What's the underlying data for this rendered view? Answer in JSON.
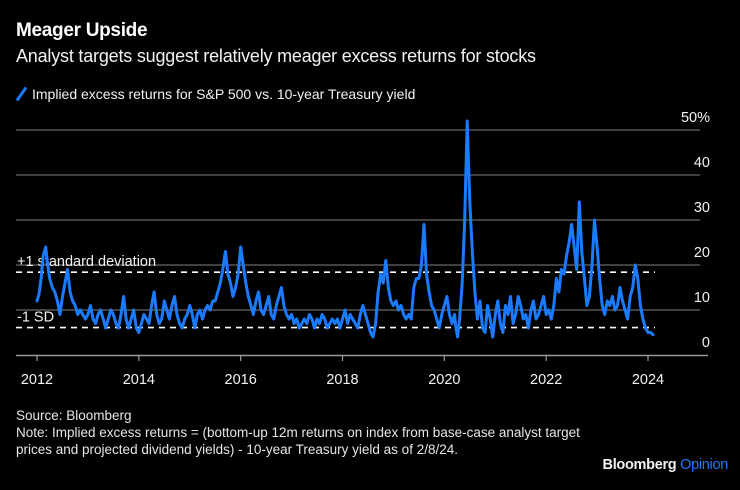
{
  "header": {
    "title": "Meager Upside",
    "subtitle": "Analyst targets suggest relatively meager excess returns for stocks"
  },
  "footer": {
    "source": "Source: Bloomberg",
    "note": "Note: Implied excess returns = (bottom-up 12m returns on index from base-case analyst target prices and projected dividend yields) - 10-year Treasury yield as of 2/8/24."
  },
  "brand": {
    "name": "Bloomberg",
    "section": "Opinion"
  },
  "colors": {
    "series": "#1a7bff",
    "grid": "#555555",
    "axis": "#9a9a9a",
    "reference": "#ffffff"
  },
  "chart_data": {
    "type": "line",
    "title": "Meager Upside",
    "subtitle": "Analyst targets suggest relatively meager excess returns for stocks",
    "xlabel": "",
    "ylabel": "",
    "ylim": [
      0,
      50
    ],
    "xlim": [
      2011.8,
      2025.3
    ],
    "grid": true,
    "y_axis_side": "right",
    "y_ticks": [
      0,
      10,
      20,
      30,
      40,
      50
    ],
    "y_tick_labels": [
      "0",
      "10",
      "20",
      "30",
      "40",
      "50%"
    ],
    "x_ticks": [
      2012,
      2014,
      2016,
      2018,
      2020,
      2022,
      2024
    ],
    "x_tick_labels": [
      "2012",
      "2014",
      "2016",
      "2018",
      "2020",
      "2022",
      "2024"
    ],
    "legend": {
      "position": "top-left",
      "entries": [
        "Implied excess returns for S&P 500 vs. 10-year Treasury yield"
      ]
    },
    "reference_lines": [
      {
        "label": "+1 standard deviation",
        "value": 18.4
      },
      {
        "label": "-1 SD",
        "value": 6.1
      }
    ],
    "series": [
      {
        "name": "Implied excess returns for S&P 500 vs. 10-year Treasury yield",
        "x": [
          2012.0,
          2012.04,
          2012.08,
          2012.12,
          2012.17,
          2012.21,
          2012.25,
          2012.3,
          2012.35,
          2012.4,
          2012.45,
          2012.5,
          2012.55,
          2012.6,
          2012.65,
          2012.7,
          2012.75,
          2012.8,
          2012.85,
          2012.9,
          2012.95,
          2013.0,
          2013.05,
          2013.1,
          2013.15,
          2013.2,
          2013.25,
          2013.3,
          2013.35,
          2013.4,
          2013.45,
          2013.5,
          2013.55,
          2013.6,
          2013.65,
          2013.7,
          2013.75,
          2013.8,
          2013.85,
          2013.9,
          2013.95,
          2014.0,
          2014.05,
          2014.1,
          2014.15,
          2014.2,
          2014.25,
          2014.3,
          2014.35,
          2014.4,
          2014.45,
          2014.5,
          2014.55,
          2014.6,
          2014.65,
          2014.7,
          2014.75,
          2014.8,
          2014.85,
          2014.9,
          2014.95,
          2015.0,
          2015.05,
          2015.1,
          2015.15,
          2015.2,
          2015.25,
          2015.3,
          2015.35,
          2015.4,
          2015.45,
          2015.5,
          2015.55,
          2015.6,
          2015.65,
          2015.7,
          2015.75,
          2015.8,
          2015.85,
          2015.9,
          2015.95,
          2016.0,
          2016.05,
          2016.1,
          2016.15,
          2016.2,
          2016.25,
          2016.3,
          2016.35,
          2016.4,
          2016.45,
          2016.5,
          2016.55,
          2016.6,
          2016.65,
          2016.7,
          2016.75,
          2016.8,
          2016.85,
          2016.9,
          2016.95,
          2017.0,
          2017.05,
          2017.1,
          2017.15,
          2017.2,
          2017.25,
          2017.3,
          2017.35,
          2017.4,
          2017.45,
          2017.5,
          2017.55,
          2017.6,
          2017.65,
          2017.7,
          2017.75,
          2017.8,
          2017.85,
          2017.9,
          2017.95,
          2018.0,
          2018.05,
          2018.1,
          2018.15,
          2018.2,
          2018.25,
          2018.3,
          2018.35,
          2018.4,
          2018.45,
          2018.5,
          2018.55,
          2018.6,
          2018.65,
          2018.7,
          2018.75,
          2018.8,
          2018.85,
          2018.9,
          2018.95,
          2019.0,
          2019.05,
          2019.1,
          2019.15,
          2019.2,
          2019.25,
          2019.3,
          2019.35,
          2019.4,
          2019.45,
          2019.5,
          2019.55,
          2019.6,
          2019.65,
          2019.7,
          2019.75,
          2019.8,
          2019.85,
          2019.9,
          2019.95,
          2020.0,
          2020.05,
          2020.1,
          2020.15,
          2020.2,
          2020.23,
          2020.26,
          2020.3,
          2020.35,
          2020.4,
          2020.45,
          2020.5,
          2020.55,
          2020.6,
          2020.65,
          2020.7,
          2020.75,
          2020.8,
          2020.85,
          2020.9,
          2020.95,
          2021.0,
          2021.05,
          2021.1,
          2021.15,
          2021.2,
          2021.25,
          2021.3,
          2021.35,
          2021.4,
          2021.45,
          2021.5,
          2021.55,
          2021.6,
          2021.65,
          2021.7,
          2021.75,
          2021.8,
          2021.85,
          2021.9,
          2021.95,
          2022.0,
          2022.05,
          2022.1,
          2022.15,
          2022.2,
          2022.25,
          2022.3,
          2022.35,
          2022.4,
          2022.45,
          2022.5,
          2022.55,
          2022.6,
          2022.65,
          2022.7,
          2022.75,
          2022.8,
          2022.85,
          2022.9,
          2022.95,
          2023.0,
          2023.05,
          2023.1,
          2023.15,
          2023.2,
          2023.25,
          2023.3,
          2023.35,
          2023.4,
          2023.45,
          2023.5,
          2023.55,
          2023.6,
          2023.65,
          2023.7,
          2023.75,
          2023.8,
          2023.85,
          2023.9,
          2023.95,
          2024.0,
          2024.05,
          2024.1
        ],
        "values": [
          12,
          13.5,
          17,
          22,
          24,
          20,
          17,
          15,
          14,
          12,
          9,
          13,
          16,
          19,
          14,
          12,
          11,
          9,
          10,
          9,
          8,
          9,
          11,
          8,
          7,
          9,
          10,
          8,
          6,
          8,
          10,
          9,
          7,
          6,
          9,
          13,
          8,
          6,
          8,
          10,
          6,
          5,
          7,
          9,
          8,
          7,
          11,
          14,
          9,
          7,
          8,
          12,
          10,
          8,
          11,
          13,
          9,
          7,
          6,
          8,
          9,
          11,
          9,
          6,
          9,
          10,
          8,
          10,
          11,
          10,
          12,
          12,
          14,
          16,
          19,
          23,
          18,
          16,
          13,
          15,
          18,
          24,
          20,
          16,
          13,
          11,
          9,
          12,
          14,
          10,
          9,
          11,
          13,
          9,
          8,
          11,
          13,
          15,
          11,
          9,
          8,
          9,
          7,
          8,
          6,
          7,
          8,
          7,
          9,
          8,
          6,
          8,
          7,
          9,
          8,
          6,
          7,
          8,
          7,
          8,
          6,
          8,
          10,
          7,
          9,
          8,
          7,
          6,
          9,
          11,
          9,
          7,
          5,
          4,
          7,
          14,
          18,
          16,
          21,
          15,
          12,
          11,
          12,
          10,
          11,
          9,
          8,
          9,
          8,
          15,
          17,
          17,
          20,
          29,
          18,
          14,
          11,
          10,
          8,
          6,
          9,
          11,
          13,
          9,
          7,
          9,
          6,
          4,
          8,
          16,
          30,
          52,
          34,
          23,
          14,
          8,
          12,
          6,
          5,
          11,
          8,
          4,
          9,
          12,
          7,
          5,
          11,
          9,
          13,
          7,
          9,
          13,
          11,
          8,
          9,
          6,
          10,
          12,
          8,
          9,
          11,
          13,
          9,
          10,
          8,
          11,
          17,
          14,
          19,
          18,
          22,
          25,
          29,
          24,
          19,
          34,
          23,
          17,
          11,
          13,
          20,
          30,
          24,
          17,
          11,
          9,
          12,
          11,
          13,
          10,
          11,
          15,
          12,
          10,
          8,
          13,
          15,
          20,
          17,
          11,
          8,
          6,
          5,
          5,
          4.5
        ]
      }
    ]
  }
}
